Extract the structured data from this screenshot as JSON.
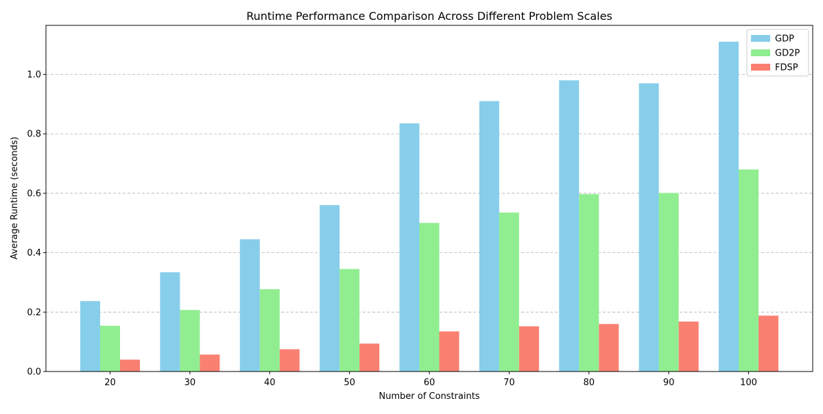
{
  "chart_data": {
    "type": "bar",
    "title": "Runtime Performance Comparison Across Different Problem Scales",
    "xlabel": "Number of Constraints",
    "ylabel": "Average Runtime (seconds)",
    "categories": [
      "20",
      "30",
      "40",
      "50",
      "60",
      "70",
      "80",
      "90",
      "100"
    ],
    "ylim": [
      0,
      1.165
    ],
    "yticks": [
      "0.0",
      "0.2",
      "0.4",
      "0.6",
      "0.8",
      "1.0"
    ],
    "grid": "horizontal-dashed",
    "legend_position": "top-right",
    "series": [
      {
        "name": "GDP",
        "color": "#87ceeb",
        "values": [
          0.237,
          0.334,
          0.445,
          0.56,
          0.835,
          0.91,
          0.98,
          0.97,
          1.11
        ]
      },
      {
        "name": "GD2P",
        "color": "#90ee90",
        "values": [
          0.154,
          0.207,
          0.277,
          0.345,
          0.5,
          0.535,
          0.597,
          0.601,
          0.68
        ]
      },
      {
        "name": "FDSP",
        "color": "#fa8072",
        "values": [
          0.04,
          0.057,
          0.075,
          0.094,
          0.135,
          0.152,
          0.16,
          0.168,
          0.188
        ]
      }
    ]
  }
}
